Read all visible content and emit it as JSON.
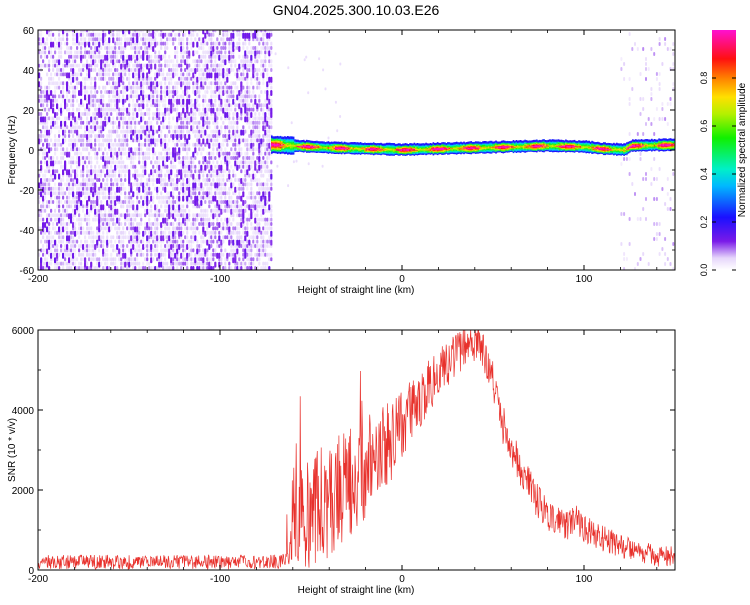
{
  "title": "GN04.2025.300.10.03.E26",
  "colors": {
    "snr_line": "#e8312c",
    "noise_purple": "#6b16e6",
    "noise_light": "#d6c3fb",
    "frame": "#000000"
  },
  "colorbar": {
    "label": "Normalized spectral amplitude",
    "ticks": [
      "0.0",
      "0.2",
      "0.4",
      "0.6",
      "0.8"
    ],
    "tick_values": [
      0,
      0.2,
      0.4,
      0.6,
      0.8
    ],
    "range": [
      0,
      1
    ],
    "colormap": "hsv-rainbow (white → purple → blue → cyan → green → yellow → red → magenta)"
  },
  "chart_data": [
    {
      "type": "heatmap",
      "title": "",
      "xlabel": "Height of straight line (km)",
      "ylabel": "Frequency (Hz)",
      "xlim": [
        -200,
        150
      ],
      "ylim": [
        -60,
        60
      ],
      "xticks": [
        -200,
        -100,
        0,
        100
      ],
      "xtick_labels": [
        "-200",
        "-100",
        "0",
        "100"
      ],
      "yticks": [
        -60,
        -40,
        -20,
        0,
        20,
        40,
        60
      ],
      "ytick_labels": [
        "-60",
        "-40",
        "-20",
        "0",
        "20",
        "40",
        "60"
      ],
      "regions": [
        {
          "x": [
            -200,
            -72
          ],
          "y": [
            -60,
            60
          ],
          "description": "broadband low-level noise",
          "amplitude": [
            0.0,
            0.15
          ]
        },
        {
          "x": [
            -72,
            150
          ],
          "y": [
            -2,
            4
          ],
          "description": "narrow signal band near 0 Hz",
          "amplitude": [
            0.3,
            1.0
          ]
        },
        {
          "x": [
            120,
            150
          ],
          "y": [
            -60,
            60
          ],
          "description": "sparse faint noise",
          "amplitude": [
            0.0,
            0.1
          ]
        }
      ],
      "band_center_hz": [
        [
          -72,
          2.5
        ],
        [
          -60,
          2
        ],
        [
          -40,
          1
        ],
        [
          -20,
          0.5
        ],
        [
          0,
          0
        ],
        [
          20,
          0.5
        ],
        [
          40,
          1
        ],
        [
          60,
          1.5
        ],
        [
          80,
          2
        ],
        [
          100,
          1.5
        ],
        [
          110,
          0.5
        ],
        [
          122,
          0
        ],
        [
          126,
          2
        ],
        [
          150,
          2.5
        ]
      ]
    },
    {
      "type": "line",
      "title": "",
      "xlabel": "Height of straight line (km)",
      "ylabel": "SNR (10 * v/v)",
      "xlim": [
        -200,
        150
      ],
      "ylim": [
        0,
        6000
      ],
      "xticks": [
        -200,
        -100,
        0,
        100
      ],
      "xtick_labels": [
        "-200",
        "-100",
        "0",
        "100"
      ],
      "yticks": [
        0,
        2000,
        4000,
        6000
      ],
      "ytick_labels": [
        "0",
        "2000",
        "4000",
        "6000"
      ],
      "series": [
        {
          "color": "#e8312c",
          "envelope": {
            "x": [
              -200,
              -150,
              -100,
              -70,
              -62,
              -60,
              -55,
              -50,
              -45,
              -40,
              -30,
              -20,
              -10,
              0,
              10,
              20,
              30,
              35,
              40,
              45,
              50,
              55,
              60,
              70,
              80,
              90,
              95,
              100,
              110,
              120,
              130,
              140,
              150
            ],
            "y": [
              200,
              200,
              200,
              200,
              250,
              1400,
              1600,
              1400,
              1600,
              1800,
              2100,
              2600,
              3000,
              3600,
              4300,
              4900,
              5400,
              5600,
              5700,
              5500,
              4700,
              3700,
              3000,
              2100,
              1300,
              1100,
              1350,
              1050,
              800,
              600,
              450,
              350,
              350
            ]
          },
          "noise_amplitude": {
            "x": [
              -200,
              -62,
              -60,
              -40,
              -20,
              0,
              20,
              40,
              60,
              100,
              150
            ],
            "y": [
              180,
              180,
              1400,
              1500,
              1300,
              900,
              600,
              500,
              500,
              350,
              250
            ]
          }
        }
      ]
    }
  ]
}
